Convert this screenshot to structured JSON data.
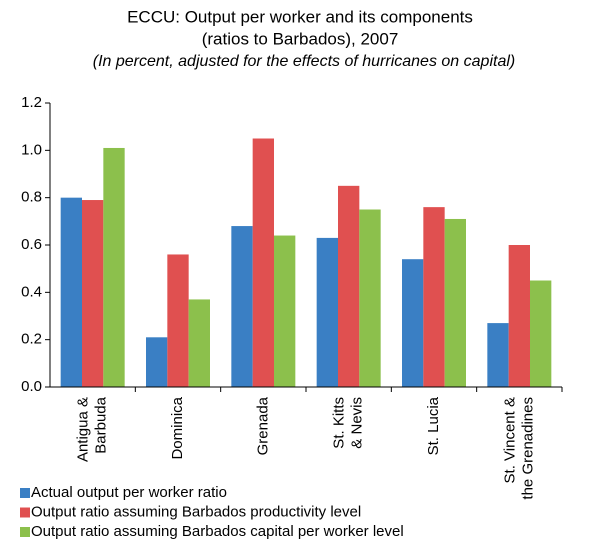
{
  "chart_data": {
    "type": "bar",
    "title": "ECCU: Output per worker and its components",
    "title_line2": "(ratios to Barbados), 2007",
    "subtitle": "(In percent, adjusted for the effects of hurricanes on capital)",
    "categories": [
      "Antigua &\nBarbuda",
      "Dominica",
      "Grenada",
      "St. Kitts\n& Nevis",
      "St. Lucia",
      "St. Vincent &\nthe Grenadines"
    ],
    "series": [
      {
        "name": "Actual output per worker ratio",
        "color": "#3a7fc4",
        "values": [
          0.8,
          0.21,
          0.68,
          0.63,
          0.54,
          0.27
        ]
      },
      {
        "name": "Output ratio assuming Barbados productivity level",
        "color": "#e05050",
        "values": [
          0.79,
          0.56,
          1.05,
          0.85,
          0.76,
          0.6
        ]
      },
      {
        "name": "Output ratio assuming Barbados capital per worker level",
        "color": "#8cc04c",
        "values": [
          1.01,
          0.37,
          0.64,
          0.75,
          0.71,
          0.45
        ]
      }
    ],
    "ylim": [
      0,
      1.2
    ],
    "yticks": [
      {
        "value": 0,
        "label": "0.0"
      },
      0.2,
      0.4,
      0.6,
      0.8,
      {
        "value": 1,
        "label": "1.0"
      },
      1.2
    ],
    "grid": false,
    "legend": "bottom-left"
  }
}
